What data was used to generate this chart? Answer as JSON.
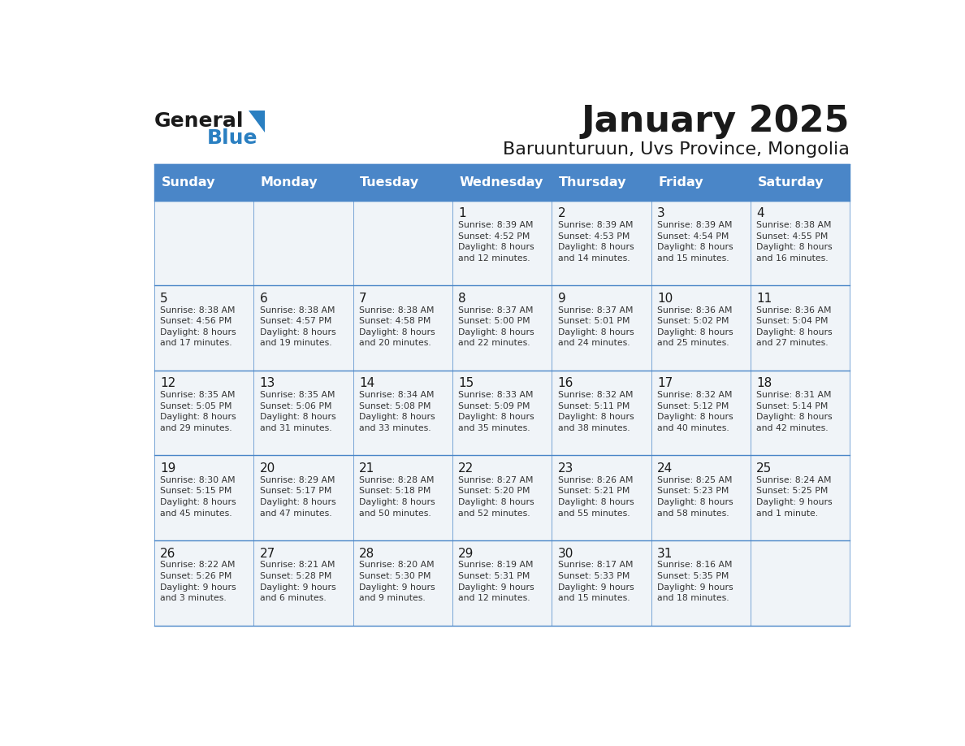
{
  "title": "January 2025",
  "subtitle": "Baruunturuun, Uvs Province, Mongolia",
  "header_color": "#4a86c8",
  "header_text_color": "#ffffff",
  "cell_bg_color": "#f0f4f8",
  "border_color": "#4a86c8",
  "day_names": [
    "Sunday",
    "Monday",
    "Tuesday",
    "Wednesday",
    "Thursday",
    "Friday",
    "Saturday"
  ],
  "title_color": "#1a1a1a",
  "subtitle_color": "#1a1a1a",
  "cell_text_color": "#333333",
  "day_num_color": "#1a1a1a",
  "logo_general_color": "#1a1a1a",
  "logo_blue_color": "#2a7fc1",
  "calendar": [
    [
      {
        "day": 0,
        "text": ""
      },
      {
        "day": 0,
        "text": ""
      },
      {
        "day": 0,
        "text": ""
      },
      {
        "day": 1,
        "text": "Sunrise: 8:39 AM\nSunset: 4:52 PM\nDaylight: 8 hours\nand 12 minutes."
      },
      {
        "day": 2,
        "text": "Sunrise: 8:39 AM\nSunset: 4:53 PM\nDaylight: 8 hours\nand 14 minutes."
      },
      {
        "day": 3,
        "text": "Sunrise: 8:39 AM\nSunset: 4:54 PM\nDaylight: 8 hours\nand 15 minutes."
      },
      {
        "day": 4,
        "text": "Sunrise: 8:38 AM\nSunset: 4:55 PM\nDaylight: 8 hours\nand 16 minutes."
      }
    ],
    [
      {
        "day": 5,
        "text": "Sunrise: 8:38 AM\nSunset: 4:56 PM\nDaylight: 8 hours\nand 17 minutes."
      },
      {
        "day": 6,
        "text": "Sunrise: 8:38 AM\nSunset: 4:57 PM\nDaylight: 8 hours\nand 19 minutes."
      },
      {
        "day": 7,
        "text": "Sunrise: 8:38 AM\nSunset: 4:58 PM\nDaylight: 8 hours\nand 20 minutes."
      },
      {
        "day": 8,
        "text": "Sunrise: 8:37 AM\nSunset: 5:00 PM\nDaylight: 8 hours\nand 22 minutes."
      },
      {
        "day": 9,
        "text": "Sunrise: 8:37 AM\nSunset: 5:01 PM\nDaylight: 8 hours\nand 24 minutes."
      },
      {
        "day": 10,
        "text": "Sunrise: 8:36 AM\nSunset: 5:02 PM\nDaylight: 8 hours\nand 25 minutes."
      },
      {
        "day": 11,
        "text": "Sunrise: 8:36 AM\nSunset: 5:04 PM\nDaylight: 8 hours\nand 27 minutes."
      }
    ],
    [
      {
        "day": 12,
        "text": "Sunrise: 8:35 AM\nSunset: 5:05 PM\nDaylight: 8 hours\nand 29 minutes."
      },
      {
        "day": 13,
        "text": "Sunrise: 8:35 AM\nSunset: 5:06 PM\nDaylight: 8 hours\nand 31 minutes."
      },
      {
        "day": 14,
        "text": "Sunrise: 8:34 AM\nSunset: 5:08 PM\nDaylight: 8 hours\nand 33 minutes."
      },
      {
        "day": 15,
        "text": "Sunrise: 8:33 AM\nSunset: 5:09 PM\nDaylight: 8 hours\nand 35 minutes."
      },
      {
        "day": 16,
        "text": "Sunrise: 8:32 AM\nSunset: 5:11 PM\nDaylight: 8 hours\nand 38 minutes."
      },
      {
        "day": 17,
        "text": "Sunrise: 8:32 AM\nSunset: 5:12 PM\nDaylight: 8 hours\nand 40 minutes."
      },
      {
        "day": 18,
        "text": "Sunrise: 8:31 AM\nSunset: 5:14 PM\nDaylight: 8 hours\nand 42 minutes."
      }
    ],
    [
      {
        "day": 19,
        "text": "Sunrise: 8:30 AM\nSunset: 5:15 PM\nDaylight: 8 hours\nand 45 minutes."
      },
      {
        "day": 20,
        "text": "Sunrise: 8:29 AM\nSunset: 5:17 PM\nDaylight: 8 hours\nand 47 minutes."
      },
      {
        "day": 21,
        "text": "Sunrise: 8:28 AM\nSunset: 5:18 PM\nDaylight: 8 hours\nand 50 minutes."
      },
      {
        "day": 22,
        "text": "Sunrise: 8:27 AM\nSunset: 5:20 PM\nDaylight: 8 hours\nand 52 minutes."
      },
      {
        "day": 23,
        "text": "Sunrise: 8:26 AM\nSunset: 5:21 PM\nDaylight: 8 hours\nand 55 minutes."
      },
      {
        "day": 24,
        "text": "Sunrise: 8:25 AM\nSunset: 5:23 PM\nDaylight: 8 hours\nand 58 minutes."
      },
      {
        "day": 25,
        "text": "Sunrise: 8:24 AM\nSunset: 5:25 PM\nDaylight: 9 hours\nand 1 minute."
      }
    ],
    [
      {
        "day": 26,
        "text": "Sunrise: 8:22 AM\nSunset: 5:26 PM\nDaylight: 9 hours\nand 3 minutes."
      },
      {
        "day": 27,
        "text": "Sunrise: 8:21 AM\nSunset: 5:28 PM\nDaylight: 9 hours\nand 6 minutes."
      },
      {
        "day": 28,
        "text": "Sunrise: 8:20 AM\nSunset: 5:30 PM\nDaylight: 9 hours\nand 9 minutes."
      },
      {
        "day": 29,
        "text": "Sunrise: 8:19 AM\nSunset: 5:31 PM\nDaylight: 9 hours\nand 12 minutes."
      },
      {
        "day": 30,
        "text": "Sunrise: 8:17 AM\nSunset: 5:33 PM\nDaylight: 9 hours\nand 15 minutes."
      },
      {
        "day": 31,
        "text": "Sunrise: 8:16 AM\nSunset: 5:35 PM\nDaylight: 9 hours\nand 18 minutes."
      },
      {
        "day": 0,
        "text": ""
      }
    ]
  ]
}
